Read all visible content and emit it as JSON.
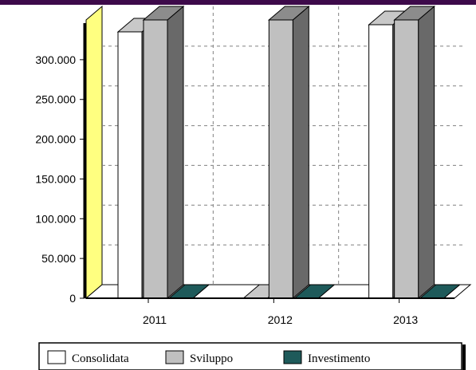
{
  "chart_data": {
    "type": "bar",
    "title": "",
    "xlabel": "",
    "ylabel": "",
    "categories": [
      "2011",
      "2012",
      "2013"
    ],
    "series": [
      {
        "name": "Consolidata",
        "values": [
          335000,
          0,
          344000
        ]
      },
      {
        "name": "Sviluppo",
        "values": [
          350000,
          350000,
          350000
        ]
      },
      {
        "name": "Investimento",
        "values": [
          0,
          0,
          0
        ]
      }
    ],
    "yticks": [
      "0",
      "50.000",
      "100.000",
      "150.000",
      "200.000",
      "250.000",
      "300.000"
    ],
    "ylim": [
      0,
      350000
    ],
    "grid": true,
    "legend": "bottom",
    "colors": {
      "Consolidata": "#ffffff",
      "Sviluppo": "#8c8c8c",
      "Investimento": "#1e5a5a",
      "wall": "#ffff80",
      "header": "#3d0a4a"
    }
  }
}
